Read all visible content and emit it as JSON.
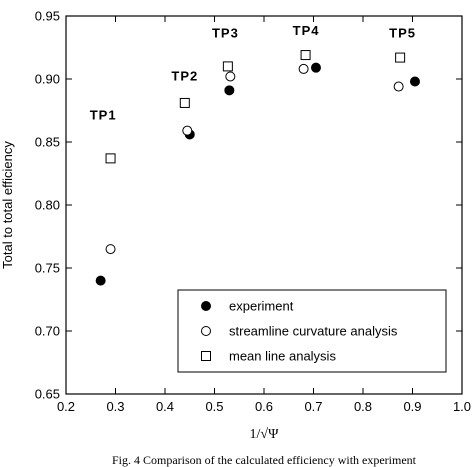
{
  "chart_data": {
    "type": "scatter",
    "title": "",
    "xlabel": "1/√Ψ",
    "ylabel": "Total to total efficiency",
    "xlim": [
      0.2,
      1.0
    ],
    "ylim": [
      0.65,
      0.95
    ],
    "x_ticks": [
      "0.2",
      "0.3",
      "0.4",
      "0.5",
      "0.6",
      "0.7",
      "0.8",
      "0.9",
      "1.0"
    ],
    "y_ticks": [
      "0.65",
      "0.70",
      "0.75",
      "0.80",
      "0.85",
      "0.90",
      "0.95"
    ],
    "grid": false,
    "legend_position": "bottom-right",
    "series": [
      {
        "name": "experiment",
        "marker": "filled-circle",
        "points": [
          {
            "x": 0.27,
            "y": 0.74
          },
          {
            "x": 0.45,
            "y": 0.856
          },
          {
            "x": 0.53,
            "y": 0.891
          },
          {
            "x": 0.705,
            "y": 0.909
          },
          {
            "x": 0.905,
            "y": 0.898
          }
        ]
      },
      {
        "name": "streamline curvature analysis",
        "marker": "open-circle",
        "points": [
          {
            "x": 0.29,
            "y": 0.765
          },
          {
            "x": 0.445,
            "y": 0.859
          },
          {
            "x": 0.532,
            "y": 0.902
          },
          {
            "x": 0.68,
            "y": 0.908
          },
          {
            "x": 0.872,
            "y": 0.894
          }
        ]
      },
      {
        "name": "mean line analysis",
        "marker": "open-square",
        "points": [
          {
            "x": 0.29,
            "y": 0.837
          },
          {
            "x": 0.44,
            "y": 0.881
          },
          {
            "x": 0.527,
            "y": 0.91
          },
          {
            "x": 0.684,
            "y": 0.919
          },
          {
            "x": 0.875,
            "y": 0.917
          }
        ]
      }
    ],
    "annotations": [
      {
        "text": "TP1",
        "x": 0.275,
        "y": 0.868
      },
      {
        "text": "TP2",
        "x": 0.44,
        "y": 0.899
      },
      {
        "text": "TP3",
        "x": 0.522,
        "y": 0.933
      },
      {
        "text": "TP4",
        "x": 0.685,
        "y": 0.935
      },
      {
        "text": "TP5",
        "x": 0.88,
        "y": 0.933
      }
    ],
    "caption": "Fig. 4   Comparison of the calculated efficiency with experiment"
  }
}
